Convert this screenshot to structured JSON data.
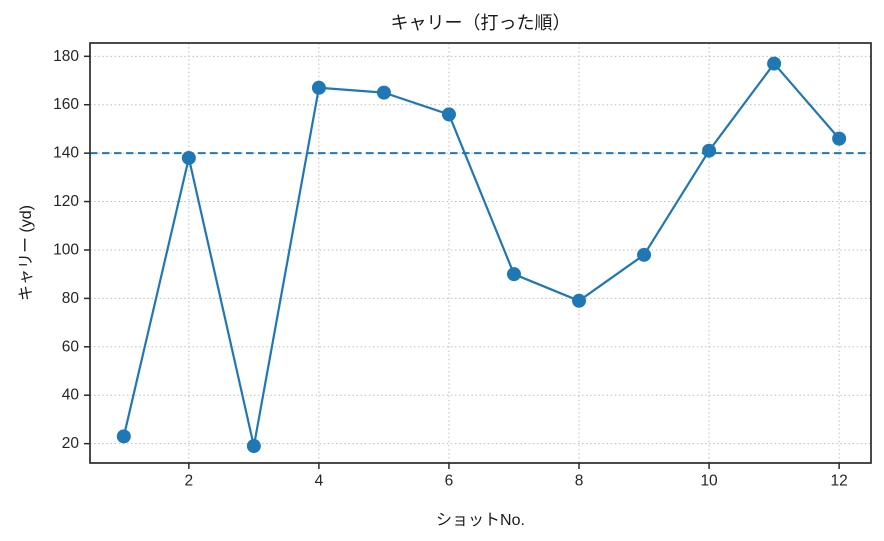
{
  "chart_data": {
    "type": "line",
    "title": "キャリー（打った順）",
    "xlabel": "ショットNo.",
    "ylabel": "キャリー (yd)",
    "x": [
      1,
      2,
      3,
      4,
      5,
      6,
      7,
      8,
      9,
      10,
      11,
      12
    ],
    "y": [
      23,
      138,
      19,
      167,
      165,
      156,
      90,
      79,
      98,
      141,
      177,
      146
    ],
    "reference_line_y": 140,
    "xticks": [
      2,
      4,
      6,
      8,
      10,
      12
    ],
    "yticks": [
      20,
      40,
      60,
      80,
      100,
      120,
      140,
      160,
      180
    ],
    "xlim": [
      0.48,
      12.49
    ],
    "ylim": [
      12,
      185.5
    ],
    "grid": true,
    "legend": "none",
    "marker": "circle",
    "colors": {
      "line": "#1f77b4",
      "reference": "#1f77b4",
      "grid": "#bdbdbd",
      "spine": "#2b2b2b",
      "text": "#262626",
      "background": "#ffffff"
    }
  }
}
